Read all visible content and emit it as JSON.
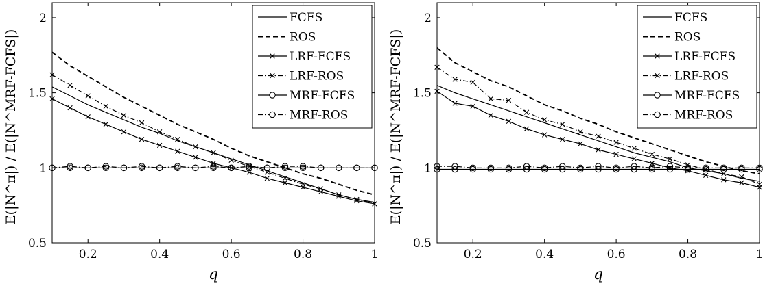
{
  "chart_data": [
    {
      "type": "line",
      "xlabel": "q",
      "ylabel": "E(|N^π|) / E(|N^MRF-FCFS|)",
      "xlim": [
        0.1,
        1
      ],
      "ylim": [
        0.5,
        2.1
      ],
      "xticks": [
        "0.2",
        "0.4",
        "0.6",
        "0.8",
        "1"
      ],
      "yticks": [
        "0.5",
        "1",
        "1.5",
        "2"
      ],
      "legend_position": "top-right",
      "x": [
        0.1,
        0.15,
        0.2,
        0.25,
        0.3,
        0.35,
        0.4,
        0.45,
        0.5,
        0.55,
        0.6,
        0.65,
        0.7,
        0.75,
        0.8,
        0.85,
        0.9,
        0.95,
        1.0
      ],
      "series": [
        {
          "name": "FCFS",
          "style": "solid",
          "marker": "none",
          "values": [
            1.54,
            1.48,
            1.42,
            1.37,
            1.32,
            1.27,
            1.23,
            1.18,
            1.14,
            1.1,
            1.06,
            1.02,
            0.98,
            0.94,
            0.9,
            0.86,
            0.82,
            0.79,
            0.77
          ]
        },
        {
          "name": "ROS",
          "style": "dashed",
          "marker": "none",
          "values": [
            1.77,
            1.68,
            1.61,
            1.54,
            1.47,
            1.41,
            1.35,
            1.29,
            1.24,
            1.19,
            1.13,
            1.08,
            1.04,
            1.0,
            0.96,
            0.93,
            0.89,
            0.85,
            0.82
          ]
        },
        {
          "name": "LRF-FCFS",
          "style": "solid",
          "marker": "x",
          "values": [
            1.46,
            1.4,
            1.34,
            1.29,
            1.24,
            1.19,
            1.15,
            1.11,
            1.07,
            1.03,
            1.0,
            0.97,
            0.93,
            0.9,
            0.87,
            0.84,
            0.81,
            0.78,
            0.76
          ]
        },
        {
          "name": "LRF-ROS",
          "style": "dashdot",
          "marker": "x",
          "values": [
            1.62,
            1.55,
            1.48,
            1.41,
            1.35,
            1.3,
            1.24,
            1.19,
            1.14,
            1.1,
            1.05,
            1.01,
            0.97,
            0.93,
            0.89,
            0.86,
            0.82,
            0.79,
            0.76
          ]
        },
        {
          "name": "MRF-FCFS",
          "style": "solid",
          "marker": "o",
          "values": [
            1.0,
            1.0,
            1.0,
            1.0,
            1.0,
            1.0,
            1.0,
            1.0,
            1.0,
            1.0,
            1.0,
            1.0,
            1.0,
            1.0,
            1.0,
            1.0,
            1.0,
            1.0,
            1.0
          ]
        },
        {
          "name": "MRF-ROS",
          "style": "dashdot",
          "marker": "o",
          "values": [
            1.0,
            1.01,
            1.0,
            1.01,
            1.0,
            1.01,
            1.0,
            1.01,
            1.0,
            1.01,
            1.0,
            1.01,
            1.0,
            1.01,
            1.01,
            1.0,
            1.0,
            1.0,
            1.0
          ]
        }
      ]
    },
    {
      "type": "line",
      "xlabel": "q",
      "ylabel": "E(|N^π|) / E(|N^MRF-FCFS|)",
      "xlim": [
        0.1,
        1
      ],
      "ylim": [
        0.5,
        2.1
      ],
      "xticks": [
        "0.2",
        "0.4",
        "0.6",
        "0.8",
        "1"
      ],
      "yticks": [
        "0.5",
        "1",
        "1.5",
        "2"
      ],
      "legend_position": "top-right",
      "x": [
        0.1,
        0.15,
        0.2,
        0.25,
        0.3,
        0.35,
        0.4,
        0.45,
        0.5,
        0.55,
        0.6,
        0.65,
        0.7,
        0.75,
        0.8,
        0.85,
        0.9,
        0.95,
        1.0
      ],
      "series": [
        {
          "name": "FCFS",
          "style": "solid",
          "marker": "none",
          "values": [
            1.55,
            1.5,
            1.46,
            1.42,
            1.38,
            1.34,
            1.3,
            1.26,
            1.22,
            1.18,
            1.14,
            1.1,
            1.07,
            1.04,
            1.0,
            0.98,
            0.96,
            0.93,
            0.91
          ]
        },
        {
          "name": "ROS",
          "style": "dashed",
          "marker": "none",
          "values": [
            1.8,
            1.7,
            1.64,
            1.58,
            1.54,
            1.48,
            1.42,
            1.38,
            1.33,
            1.29,
            1.24,
            1.2,
            1.16,
            1.12,
            1.08,
            1.04,
            1.01,
            0.98,
            0.96
          ]
        },
        {
          "name": "LRF-FCFS",
          "style": "solid",
          "marker": "x",
          "values": [
            1.51,
            1.43,
            1.41,
            1.35,
            1.31,
            1.26,
            1.22,
            1.19,
            1.16,
            1.12,
            1.09,
            1.06,
            1.03,
            1.0,
            0.98,
            0.95,
            0.92,
            0.9,
            0.87
          ]
        },
        {
          "name": "LRF-ROS",
          "style": "dashdot",
          "marker": "x",
          "values": [
            1.67,
            1.59,
            1.57,
            1.46,
            1.45,
            1.37,
            1.32,
            1.29,
            1.24,
            1.21,
            1.17,
            1.13,
            1.09,
            1.06,
            1.02,
            0.99,
            0.96,
            0.94,
            0.89
          ]
        },
        {
          "name": "MRF-FCFS",
          "style": "solid",
          "marker": "o",
          "values": [
            0.99,
            0.99,
            0.99,
            0.99,
            0.99,
            0.99,
            0.99,
            0.99,
            0.99,
            0.99,
            0.99,
            0.99,
            0.99,
            0.99,
            0.99,
            0.99,
            0.99,
            0.99,
            0.99
          ]
        },
        {
          "name": "MRF-ROS",
          "style": "dashdot",
          "marker": "o",
          "values": [
            1.01,
            1.01,
            1.0,
            1.0,
            1.0,
            1.01,
            1.0,
            1.01,
            1.0,
            1.01,
            1.0,
            1.01,
            1.0,
            1.01,
            1.0,
            1.0,
            1.0,
            1.0,
            1.0
          ]
        }
      ]
    }
  ]
}
